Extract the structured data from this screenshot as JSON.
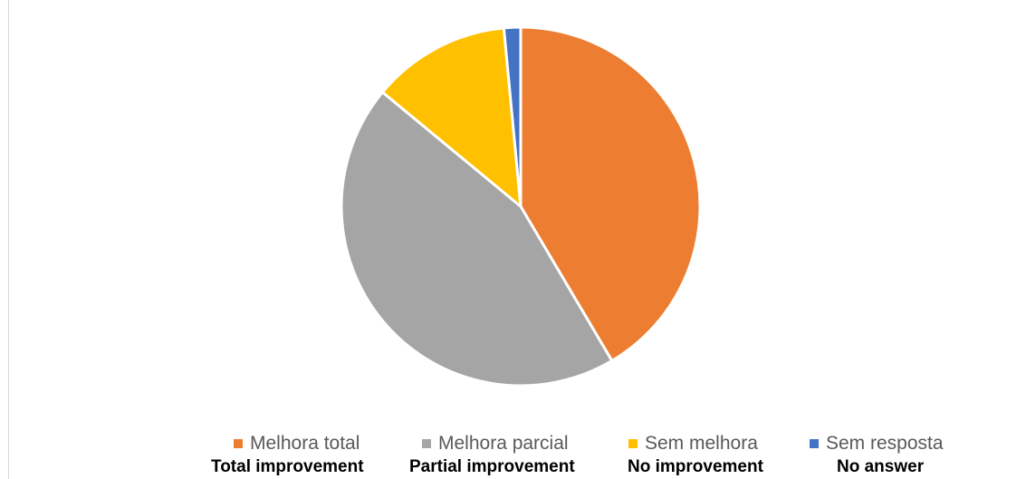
{
  "chart_data": {
    "type": "pie",
    "title": "",
    "slices": [
      {
        "label": "Melhora total",
        "translation": "Total improvement",
        "value": 41.5,
        "color": "#ED7D31"
      },
      {
        "label": "Melhora parcial",
        "translation": "Partial improvement",
        "value": 44.5,
        "color": "#A5A5A5"
      },
      {
        "label": "Sem melhora",
        "translation": "No improvement",
        "value": 12.5,
        "color": "#FFC000"
      },
      {
        "label": "Sem resposta",
        "translation": "No answer",
        "value": 1.5,
        "color": "#4472C4"
      }
    ],
    "legend_position": "bottom"
  }
}
